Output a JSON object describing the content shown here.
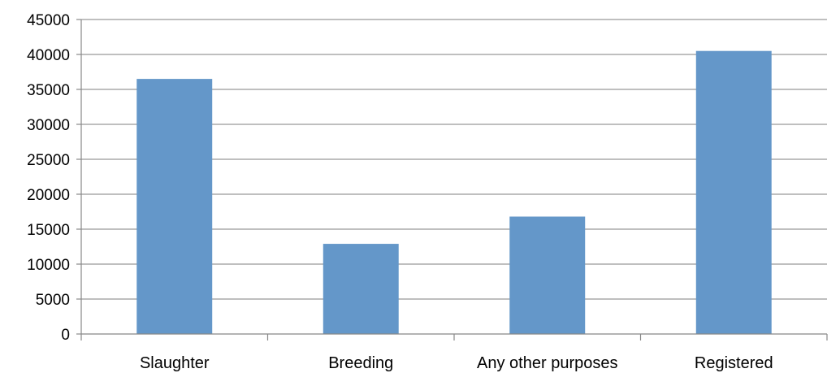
{
  "chart_data": {
    "type": "bar",
    "categories": [
      "Slaughter",
      "Breeding",
      "Any other purposes",
      "Registered"
    ],
    "series": [
      {
        "values": [
          36500,
          12900,
          16800,
          40500
        ],
        "color": "#6497C9"
      }
    ],
    "ylim": [
      0,
      45000
    ],
    "yticks": [
      0,
      5000,
      10000,
      15000,
      20000,
      25000,
      30000,
      35000,
      40000,
      45000
    ],
    "grid": true,
    "legend": "none",
    "gridline_color": "#999999",
    "axis_color": "#888888"
  }
}
